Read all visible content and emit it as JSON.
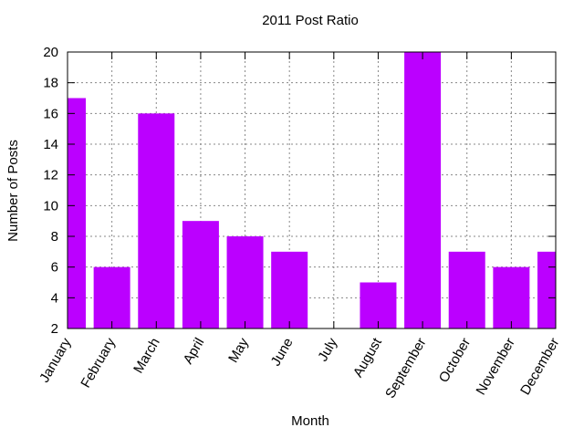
{
  "chart_data": {
    "type": "bar",
    "title": "2011 Post Ratio",
    "x_label": "Month",
    "y_label": "Number of Posts",
    "categories": [
      "January",
      "February",
      "March",
      "April",
      "May",
      "June",
      "July",
      "August",
      "September",
      "October",
      "November",
      "December"
    ],
    "values": [
      17,
      6,
      16,
      9,
      8,
      7,
      2,
      5,
      20,
      7,
      6,
      7
    ],
    "color": "#bb00ff",
    "ylim": [
      2,
      20
    ],
    "yticks": [
      2,
      4,
      6,
      8,
      10,
      12,
      14,
      16,
      18,
      20
    ],
    "grid": true
  }
}
